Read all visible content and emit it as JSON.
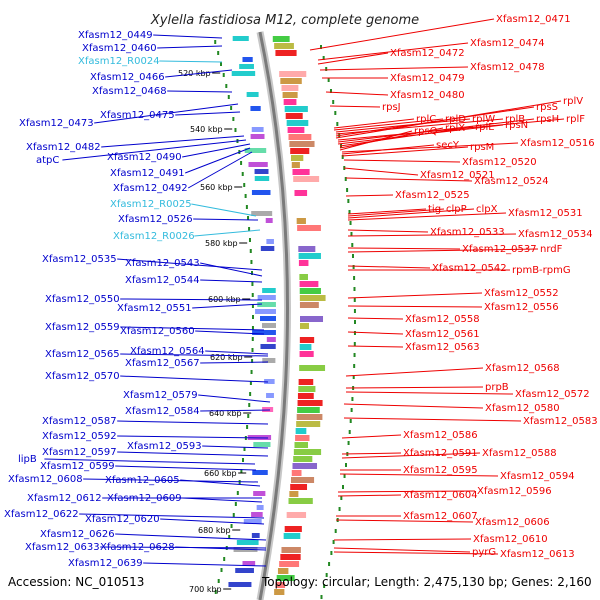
{
  "title": "Xylella fastidiosa M12, complete genome",
  "footer": {
    "accession": "Accession: NC_010513",
    "summary": "Topology: circular; Length: 2,475,130 bp; Genes: 2,160"
  },
  "colors": {
    "left_gene": "#0000cc",
    "left_rna": "#33bbdd",
    "right_gene": "#ee0000",
    "backbone": "#888888",
    "tick": "#228822"
  },
  "ticks": [
    "520 kbp",
    "540 kbp",
    "560 kbp",
    "580 kbp",
    "600 kbp",
    "620 kbp",
    "640 kbp",
    "660 kbp",
    "680 kbp",
    "700 kbp"
  ],
  "left_labels": [
    {
      "text": "Xfasm12_0449",
      "kind": "gene"
    },
    {
      "text": "Xfasm12_0460",
      "kind": "gene"
    },
    {
      "text": "Xfasm12_R0024",
      "kind": "rna"
    },
    {
      "text": "Xfasm12_0466",
      "kind": "gene"
    },
    {
      "text": "Xfasm12_0468",
      "kind": "gene"
    },
    {
      "text": "Xfasm12_0473",
      "kind": "gene"
    },
    {
      "text": "Xfasm12_0475",
      "kind": "gene"
    },
    {
      "text": "Xfasm12_0482",
      "kind": "gene"
    },
    {
      "text": "atpC",
      "kind": "gene"
    },
    {
      "text": "Xfasm12_0490",
      "kind": "gene"
    },
    {
      "text": "Xfasm12_0491",
      "kind": "gene"
    },
    {
      "text": "Xfasm12_0492",
      "kind": "gene"
    },
    {
      "text": "Xfasm12_R0025",
      "kind": "rna"
    },
    {
      "text": "Xfasm12_0526",
      "kind": "gene"
    },
    {
      "text": "Xfasm12_R0026",
      "kind": "rna"
    },
    {
      "text": "Xfasm12_0535",
      "kind": "gene"
    },
    {
      "text": "Xfasm12_0543",
      "kind": "gene"
    },
    {
      "text": "Xfasm12_0544",
      "kind": "gene"
    },
    {
      "text": "Xfasm12_0550",
      "kind": "gene"
    },
    {
      "text": "Xfasm12_0551",
      "kind": "gene"
    },
    {
      "text": "Xfasm12_0559",
      "kind": "gene"
    },
    {
      "text": "Xfasm12_0560",
      "kind": "gene"
    },
    {
      "text": "Xfasm12_0565",
      "kind": "gene"
    },
    {
      "text": "Xfasm12_0564",
      "kind": "gene"
    },
    {
      "text": "Xfasm12_0567",
      "kind": "gene"
    },
    {
      "text": "Xfasm12_0570",
      "kind": "gene"
    },
    {
      "text": "Xfasm12_0579",
      "kind": "gene"
    },
    {
      "text": "Xfasm12_0584",
      "kind": "gene"
    },
    {
      "text": "Xfasm12_0587",
      "kind": "gene"
    },
    {
      "text": "Xfasm12_0592",
      "kind": "gene"
    },
    {
      "text": "Xfasm12_0593",
      "kind": "gene"
    },
    {
      "text": "Xfasm12_0597",
      "kind": "gene"
    },
    {
      "text": "lipB",
      "kind": "gene"
    },
    {
      "text": "Xfasm12_0599",
      "kind": "gene"
    },
    {
      "text": "Xfasm12_0608",
      "kind": "gene"
    },
    {
      "text": "Xfasm12_0605",
      "kind": "gene"
    },
    {
      "text": "Xfasm12_0612",
      "kind": "gene"
    },
    {
      "text": "Xfasm12_0609",
      "kind": "gene"
    },
    {
      "text": "Xfasm12_0622",
      "kind": "gene"
    },
    {
      "text": "Xfasm12_0620",
      "kind": "gene"
    },
    {
      "text": "Xfasm12_0626",
      "kind": "gene"
    },
    {
      "text": "Xfasm12_0633",
      "kind": "gene"
    },
    {
      "text": "Xfasm12_0628",
      "kind": "gene"
    },
    {
      "text": "Xfasm12_0639",
      "kind": "gene"
    }
  ],
  "right_labels": [
    "Xfasm12_0471",
    "Xfasm12_0474",
    "Xfasm12_0472",
    "Xfasm12_0478",
    "Xfasm12_0479",
    "Xfasm12_0480",
    "rpsJ",
    "rplC",
    "rplD",
    "rplW",
    "rplB",
    "rpsS",
    "rplV",
    "rplF",
    "rpsH",
    "rpsN",
    "rplE",
    "rplX",
    "rpsQ",
    "Xfasm12_0516",
    "secY",
    "rpsM",
    "Xfasm12_0520",
    "Xfasm12_0521",
    "Xfasm12_0524",
    "Xfasm12_0525",
    "tig",
    "clpP",
    "clpX",
    "Xfasm12_0531",
    "Xfasm12_0533",
    "Xfasm12_0534",
    "Xfasm12_0537",
    "nrdF",
    "Xfasm12_0542",
    "rpmB-rpmG",
    "Xfasm12_0552",
    "Xfasm12_0556",
    "Xfasm12_0558",
    "Xfasm12_0561",
    "Xfasm12_0563",
    "Xfasm12_0568",
    "prpB",
    "Xfasm12_0572",
    "Xfasm12_0580",
    "Xfasm12_0583",
    "Xfasm12_0586",
    "Xfasm12_0591",
    "Xfasm12_0588",
    "Xfasm12_0595",
    "Xfasm12_0594",
    "Xfasm12_0604",
    "Xfasm12_0596",
    "Xfasm12_0607",
    "Xfasm12_0606",
    "Xfasm12_0610",
    "pyrG",
    "Xfasm12_0613"
  ]
}
